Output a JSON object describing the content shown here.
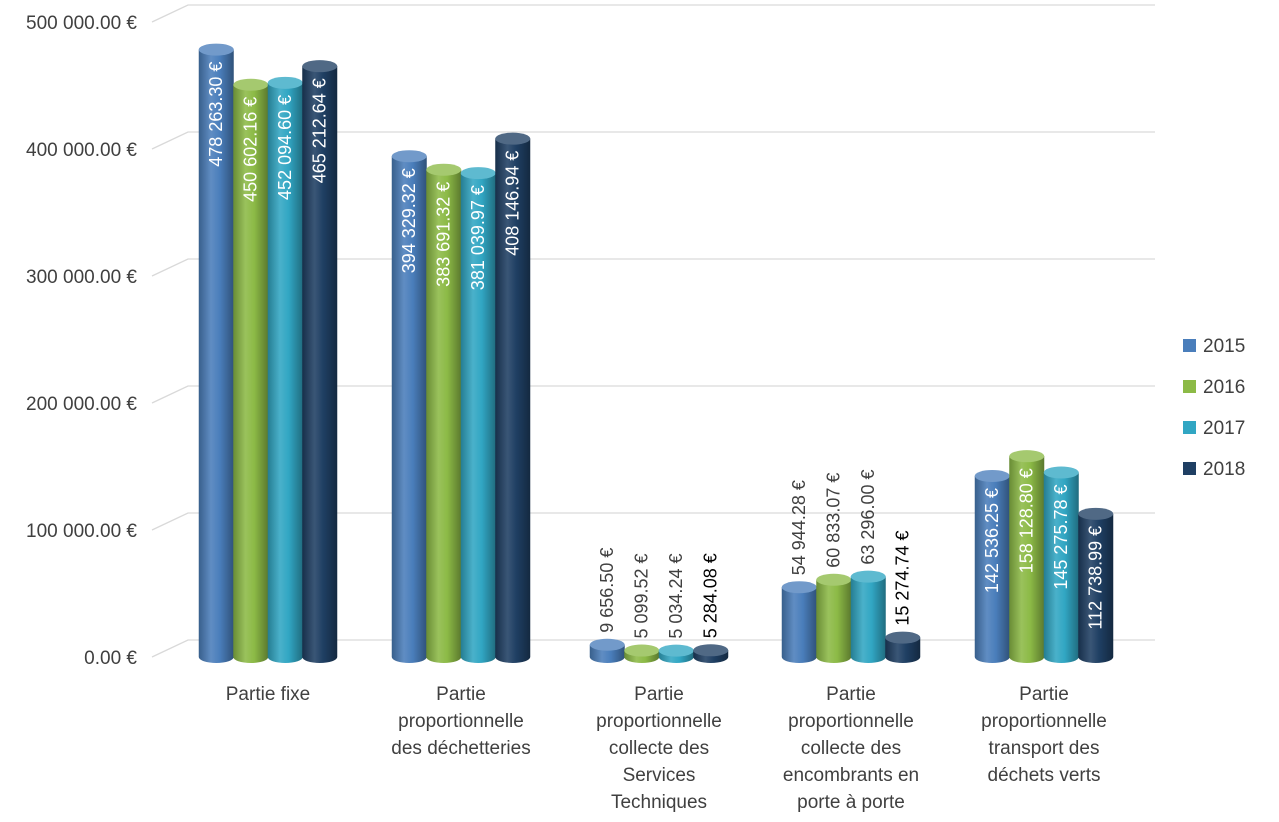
{
  "chart_data": {
    "type": "bar",
    "categories": [
      [
        "Partie fixe"
      ],
      [
        "Partie",
        "proportionnelle",
        "des déchetteries"
      ],
      [
        "Partie",
        "proportionnelle",
        "collecte des",
        "Services",
        "Techniques"
      ],
      [
        "Partie",
        "proportionnelle",
        "collecte des",
        "encombrants en",
        "porte à porte"
      ],
      [
        "Partie",
        "proportionnelle",
        "transport des",
        "déchets verts"
      ]
    ],
    "series": [
      {
        "name": "2015",
        "color": "#4a7ebb",
        "values": [
          478263.3,
          394329.32,
          9656.5,
          54944.28,
          142536.25
        ],
        "labels": [
          "478 263.30 €",
          "394 329.32 €",
          "9 656.50 €",
          "54 944.28 €",
          "142 536.25 €"
        ]
      },
      {
        "name": "2016",
        "color": "#8cba46",
        "values": [
          450602.16,
          383691.32,
          5099.52,
          60833.07,
          158128.8
        ],
        "labels": [
          "450 602.16 €",
          "383 691.32 €",
          "5 099.52 €",
          "60 833.07 €",
          "158 128.80 €"
        ]
      },
      {
        "name": "2017",
        "color": "#31a6c3",
        "values": [
          452094.6,
          381039.97,
          5034.24,
          63296.0,
          145275.78
        ],
        "labels": [
          "452 094.60 €",
          "381 039.97 €",
          "5 034.24 €",
          "63 296.00 €",
          "145 275.78 €"
        ]
      },
      {
        "name": "2018",
        "color": "#1f3f63",
        "values": [
          465212.64,
          408146.94,
          5284.08,
          15274.74,
          112738.99
        ],
        "labels": [
          "465 212.64 €",
          "408 146.94 €",
          "5 284.08 €",
          "15 274.74 €",
          "112 738.99 €"
        ]
      }
    ],
    "yticks": [
      "0.00 €",
      "100 000.00 €",
      "200 000.00 €",
      "300 000.00 €",
      "400 000.00 €",
      "500 000.00 €"
    ],
    "ylim": [
      0,
      500000
    ],
    "grid": true,
    "legend_position": "right",
    "title": "",
    "xlabel": "",
    "ylabel": ""
  }
}
